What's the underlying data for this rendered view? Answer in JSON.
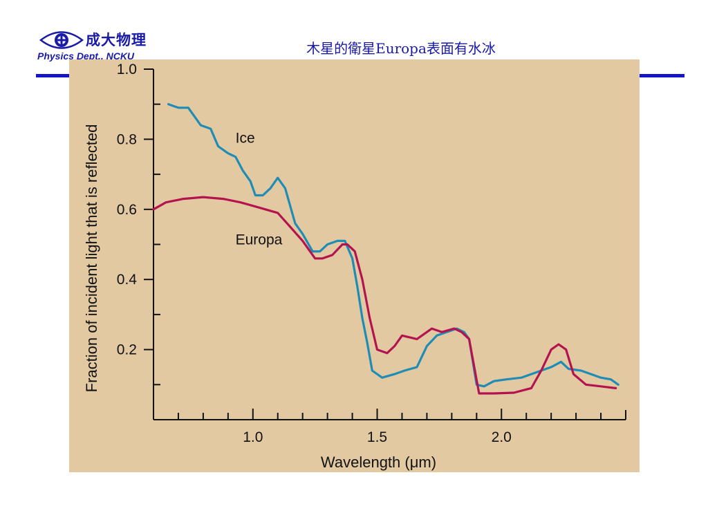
{
  "header": {
    "logo_cn": "成大物理",
    "logo_en": "Physics Dept., NCKU",
    "title": "木星的衛星Europa表面有水冰"
  },
  "colors": {
    "header_text": "#1a1aa8",
    "rule": "#1414c8",
    "figure_background": "#e3c9a1",
    "ice": "#1f8cb5",
    "europa": "#b3134e"
  },
  "icons": {
    "logo": "eye-logo-icon"
  },
  "chart_data": {
    "type": "line",
    "title": "",
    "xlabel": "Wavelength (μm)",
    "ylabel": "Fraction of incident light that is reflected",
    "xlim": [
      0.6,
      2.5
    ],
    "ylim": [
      0.0,
      1.0
    ],
    "x_ticks": [
      1.0,
      1.5,
      2.0
    ],
    "x_tick_labels": [
      "1.0",
      "1.5",
      "2.0"
    ],
    "x_minor_step": 0.1,
    "y_ticks": [
      0.2,
      0.4,
      0.6,
      0.8,
      1.0
    ],
    "y_tick_labels": [
      "0.2",
      "0.4",
      "0.6",
      "0.8",
      "1.0"
    ],
    "y_minor_step": 0.1,
    "grid": false,
    "series": [
      {
        "name": "Ice",
        "color": "#1f8cb5",
        "label_anchor": [
          0.93,
          0.79
        ],
        "points": [
          [
            0.66,
            0.9
          ],
          [
            0.7,
            0.89
          ],
          [
            0.74,
            0.89
          ],
          [
            0.79,
            0.84
          ],
          [
            0.83,
            0.83
          ],
          [
            0.86,
            0.78
          ],
          [
            0.9,
            0.76
          ],
          [
            0.93,
            0.75
          ],
          [
            0.96,
            0.71
          ],
          [
            0.99,
            0.68
          ],
          [
            1.01,
            0.64
          ],
          [
            1.04,
            0.64
          ],
          [
            1.07,
            0.66
          ],
          [
            1.1,
            0.69
          ],
          [
            1.13,
            0.66
          ],
          [
            1.17,
            0.56
          ],
          [
            1.2,
            0.53
          ],
          [
            1.24,
            0.48
          ],
          [
            1.27,
            0.48
          ],
          [
            1.3,
            0.5
          ],
          [
            1.34,
            0.51
          ],
          [
            1.37,
            0.51
          ],
          [
            1.4,
            0.46
          ],
          [
            1.42,
            0.38
          ],
          [
            1.44,
            0.29
          ],
          [
            1.46,
            0.22
          ],
          [
            1.48,
            0.14
          ],
          [
            1.52,
            0.12
          ],
          [
            1.57,
            0.13
          ],
          [
            1.61,
            0.14
          ],
          [
            1.66,
            0.15
          ],
          [
            1.7,
            0.21
          ],
          [
            1.74,
            0.24
          ],
          [
            1.78,
            0.25
          ],
          [
            1.82,
            0.26
          ],
          [
            1.85,
            0.25
          ],
          [
            1.87,
            0.23
          ],
          [
            1.9,
            0.1
          ],
          [
            1.93,
            0.095
          ],
          [
            1.97,
            0.11
          ],
          [
            2.02,
            0.115
          ],
          [
            2.08,
            0.12
          ],
          [
            2.12,
            0.13
          ],
          [
            2.16,
            0.14
          ],
          [
            2.2,
            0.15
          ],
          [
            2.24,
            0.165
          ],
          [
            2.27,
            0.145
          ],
          [
            2.32,
            0.14
          ],
          [
            2.36,
            0.13
          ],
          [
            2.4,
            0.12
          ],
          [
            2.44,
            0.115
          ],
          [
            2.47,
            0.1
          ]
        ]
      },
      {
        "name": "Europa",
        "color": "#b3134e",
        "label_anchor": [
          0.93,
          0.5
        ],
        "points": [
          [
            0.6,
            0.6
          ],
          [
            0.65,
            0.62
          ],
          [
            0.72,
            0.63
          ],
          [
            0.8,
            0.635
          ],
          [
            0.88,
            0.63
          ],
          [
            0.95,
            0.62
          ],
          [
            1.0,
            0.61
          ],
          [
            1.05,
            0.6
          ],
          [
            1.1,
            0.59
          ],
          [
            1.15,
            0.55
          ],
          [
            1.2,
            0.51
          ],
          [
            1.25,
            0.46
          ],
          [
            1.28,
            0.46
          ],
          [
            1.32,
            0.47
          ],
          [
            1.36,
            0.5
          ],
          [
            1.38,
            0.5
          ],
          [
            1.41,
            0.48
          ],
          [
            1.44,
            0.4
          ],
          [
            1.47,
            0.29
          ],
          [
            1.5,
            0.2
          ],
          [
            1.54,
            0.19
          ],
          [
            1.57,
            0.21
          ],
          [
            1.6,
            0.24
          ],
          [
            1.66,
            0.23
          ],
          [
            1.72,
            0.26
          ],
          [
            1.76,
            0.25
          ],
          [
            1.81,
            0.26
          ],
          [
            1.84,
            0.25
          ],
          [
            1.87,
            0.23
          ],
          [
            1.91,
            0.075
          ],
          [
            1.97,
            0.075
          ],
          [
            2.05,
            0.077
          ],
          [
            2.12,
            0.09
          ],
          [
            2.16,
            0.14
          ],
          [
            2.2,
            0.2
          ],
          [
            2.23,
            0.215
          ],
          [
            2.26,
            0.2
          ],
          [
            2.29,
            0.13
          ],
          [
            2.34,
            0.1
          ],
          [
            2.4,
            0.095
          ],
          [
            2.46,
            0.09
          ]
        ]
      }
    ]
  }
}
